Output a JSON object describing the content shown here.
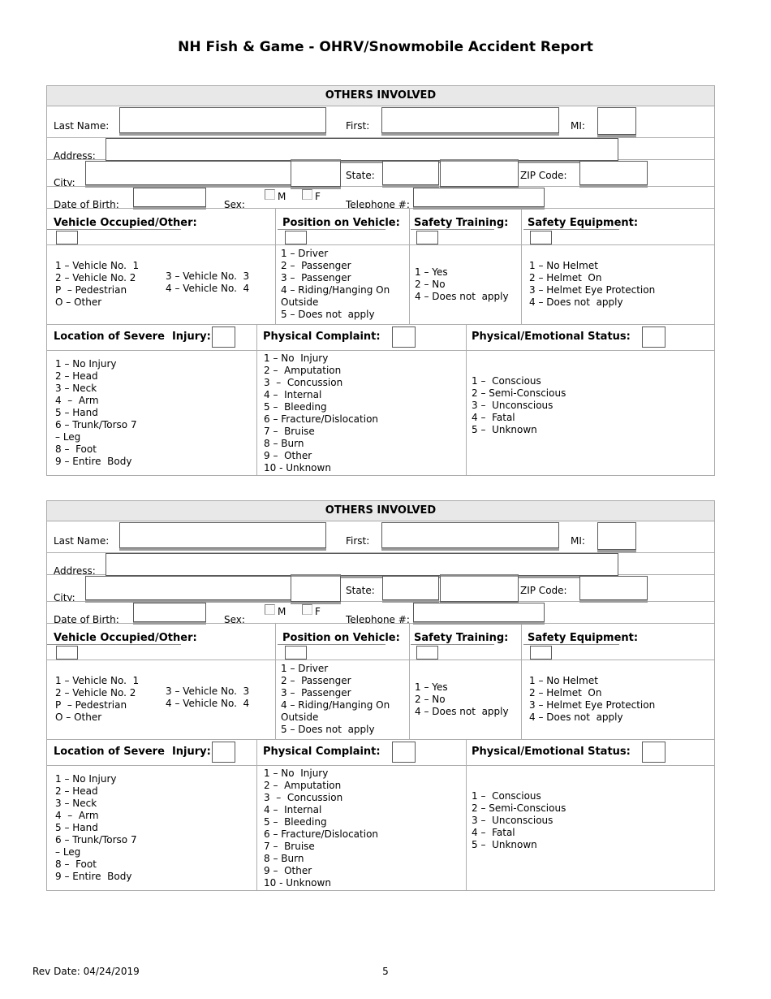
{
  "page": {
    "title": "NH Fish & Game - OHRV/Snowmobile Accident Report",
    "footer": {
      "rev_date": "Rev Date: 04/24/2019",
      "page_number": "5"
    }
  },
  "sections": [
    {
      "header": "OTHERS INVOLVED",
      "fields": {
        "last_name": "Last Name:",
        "first": "First:",
        "mi": "MI:",
        "address": "Address:",
        "city": "City:",
        "state": "State:",
        "zip": "ZIP Code:",
        "dob": "Date of Birth:",
        "sex": "Sex:",
        "sex_m": "M",
        "sex_f": "F",
        "telephone": "Telephone #:"
      },
      "vehicle_occupied": {
        "label": "Vehicle Occupied/Other:",
        "options_col1": [
          "1 – Vehicle No.  1",
          "2 – Vehicle No. 2",
          "P  – Pedestrian",
          "O – Other"
        ],
        "options_col2": [
          "3 – Vehicle No.  3",
          "4 – Vehicle No.  4"
        ]
      },
      "position_on_vehicle": {
        "label": "Position on Vehicle:",
        "options": [
          "1 – Driver",
          "2 –  Passenger",
          "3 –  Passenger",
          "4 – Riding/Hanging On",
          "Outside",
          "5 – Does not  apply"
        ]
      },
      "safety_training": {
        "label": "Safety Training:",
        "options": [
          "1 – Yes",
          "2 – No",
          "4 – Does not  apply"
        ]
      },
      "safety_equipment": {
        "label": "Safety Equipment:",
        "options": [
          "1 – No Helmet",
          "2 – Helmet  On",
          "3 – Helmet Eye Protection",
          "4 – Does not  apply"
        ]
      },
      "location_of_severe_injury": {
        "label": "Location of Severe  Injury:",
        "options": [
          "1 – No Injury",
          "2 – Head",
          "3 – Neck",
          "4  –  Arm",
          "5 – Hand",
          "6 – Trunk/Torso 7",
          "– Leg",
          "8 –  Foot",
          "9 – Entire  Body"
        ]
      },
      "physical_complaint": {
        "label": "Physical Complaint:",
        "options": [
          "1 – No  Injury",
          "2 –  Amputation",
          "3  –  Concussion",
          "4 –  Internal",
          "5 –  Bleeding",
          "6 – Fracture/Dislocation",
          "7 –  Bruise",
          "8 – Burn",
          "9 –  Other",
          "10 - Unknown"
        ]
      },
      "physical_emotional_status": {
        "label": "Physical/Emotional Status:",
        "options": [
          "1 –  Conscious",
          "2 – Semi-Conscious",
          "3 –  Unconscious",
          "4 –  Fatal",
          "5 –  Unknown"
        ]
      }
    },
    {
      "header": "OTHERS INVOLVED",
      "fields": {
        "last_name": "Last Name:",
        "first": "First:",
        "mi": "MI:",
        "address": "Address:",
        "city": "City:",
        "state": "State:",
        "zip": "ZIP Code:",
        "dob": "Date of Birth:",
        "sex": "Sex:",
        "sex_m": "M",
        "sex_f": "F",
        "telephone": "Telephone #:"
      },
      "vehicle_occupied": {
        "label": "Vehicle Occupied/Other:",
        "options_col1": [
          "1 – Vehicle No.  1",
          "2 – Vehicle No. 2",
          "P  – Pedestrian",
          "O – Other"
        ],
        "options_col2": [
          "3 – Vehicle No.  3",
          "4 – Vehicle No.  4"
        ]
      },
      "position_on_vehicle": {
        "label": "Position on Vehicle:",
        "options": [
          "1 – Driver",
          "2 –  Passenger",
          "3 –  Passenger",
          "4 – Riding/Hanging On",
          "Outside",
          "5 – Does not  apply"
        ]
      },
      "safety_training": {
        "label": "Safety Training:",
        "options": [
          "1 – Yes",
          "2 – No",
          "4 – Does not  apply"
        ]
      },
      "safety_equipment": {
        "label": "Safety Equipment:",
        "options": [
          "1 – No Helmet",
          "2 – Helmet  On",
          "3 – Helmet Eye Protection",
          "4 – Does not  apply"
        ]
      },
      "location_of_severe_injury": {
        "label": "Location of Severe  Injury:",
        "options": [
          "1 – No Injury",
          "2 – Head",
          "3 – Neck",
          "4  –  Arm",
          "5 – Hand",
          "6 – Trunk/Torso 7",
          "– Leg",
          "8 –  Foot",
          "9 – Entire  Body"
        ]
      },
      "physical_complaint": {
        "label": "Physical Complaint:",
        "options": [
          "1 – No  Injury",
          "2 –  Amputation",
          "3  –  Concussion",
          "4 –  Internal",
          "5 –  Bleeding",
          "6 – Fracture/Dislocation",
          "7 –  Bruise",
          "8 – Burn",
          "9 –  Other",
          "10 - Unknown"
        ]
      },
      "physical_emotional_status": {
        "label": "Physical/Emotional Status:",
        "options": [
          "1 –  Conscious",
          "2 – Semi-Conscious",
          "3 –  Unconscious",
          "4 –  Fatal",
          "5 –  Unknown"
        ]
      }
    }
  ]
}
